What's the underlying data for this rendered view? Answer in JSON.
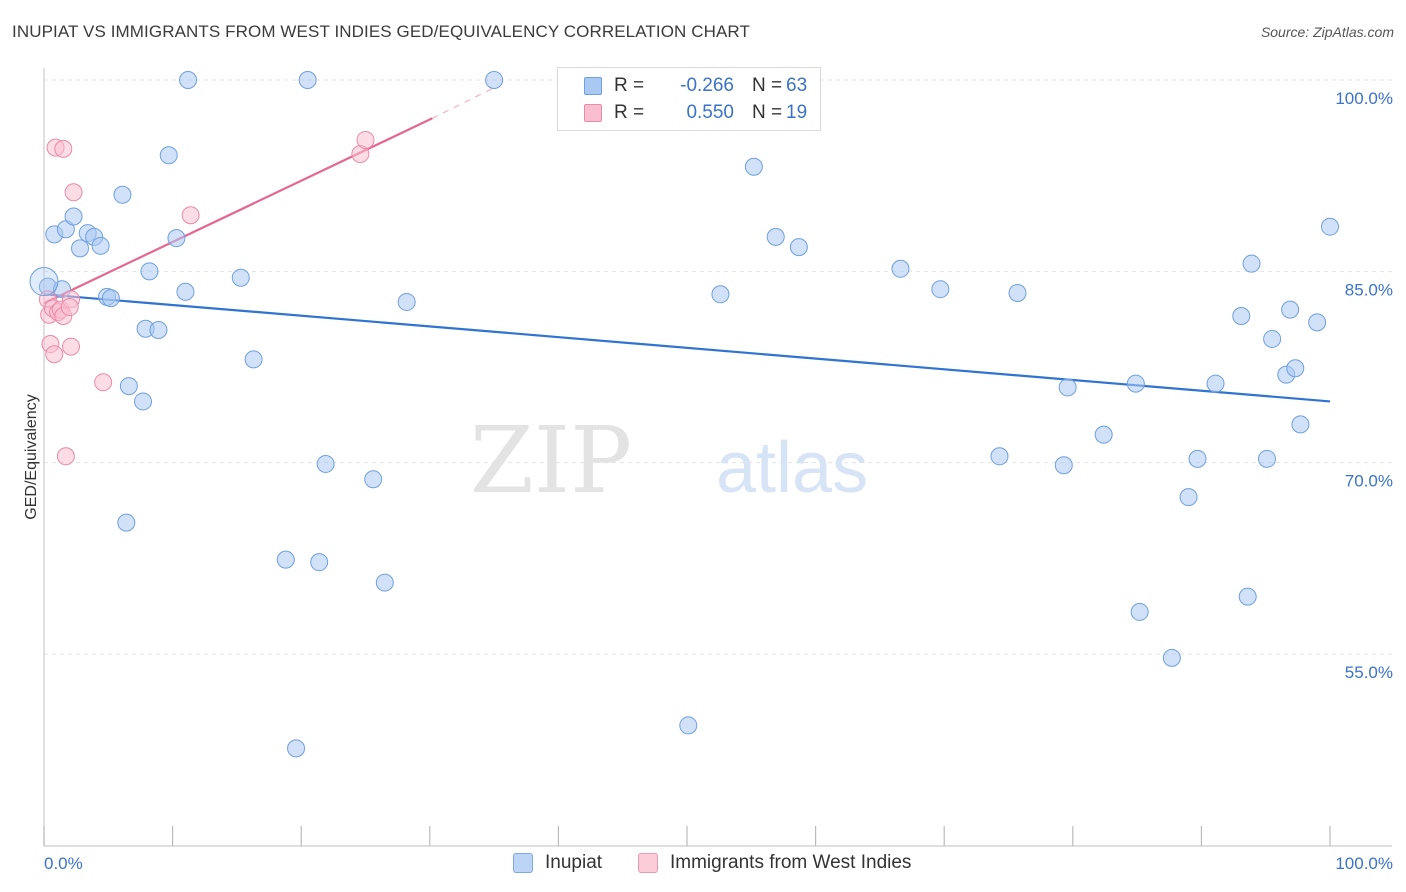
{
  "header": {
    "title": "INUPIAT VS IMMIGRANTS FROM WEST INDIES GED/EQUIVALENCY CORRELATION CHART",
    "source": "Source: ZipAtlas.com"
  },
  "legend_box": {
    "rows": [
      {
        "r_label": "R =",
        "r_value": "-0.266",
        "n_label": "N =",
        "n_value": "63",
        "color": "#a9c8f2",
        "border": "#6fa0e0"
      },
      {
        "r_label": "R =",
        "r_value": "0.550",
        "n_label": "N =",
        "n_value": "19",
        "color": "#f9bfd0",
        "border": "#ea8aa9"
      }
    ]
  },
  "bottom_legend": [
    {
      "label": "Inupiat",
      "color": "#bcd5f6",
      "border": "#7ea9e4"
    },
    {
      "label": "Immigrants from West Indies",
      "color": "#fbcdd9",
      "border": "#ee97b2"
    }
  ],
  "watermark": {
    "part1": "ZIP",
    "part2": "atlas"
  },
  "chart_data": {
    "type": "scatter",
    "title": "INUPIAT VS IMMIGRANTS FROM WEST INDIES GED/EQUIVALENCY CORRELATION CHART",
    "xlabel": "",
    "ylabel": "GED/Equivalency",
    "xlim": [
      0,
      100
    ],
    "ylim": [
      37,
      103
    ],
    "x_tick_labels": [
      "0.0%",
      "100.0%"
    ],
    "y_ticks": [
      55,
      70,
      85,
      100
    ],
    "y_tick_labels": [
      "55.0%",
      "70.0%",
      "85.0%",
      "100.0%"
    ],
    "grid": true,
    "legend_position": "top-center",
    "series": [
      {
        "name": "Inupiat",
        "color": "#a9c8f2",
        "stroke": "#6fa0e0",
        "trend_color": "#2f74d0",
        "trend": {
          "x": [
            0,
            100
          ],
          "y": [
            83.2,
            74.8
          ]
        },
        "points": [
          [
            0.3,
            83.8
          ],
          [
            0.8,
            87.9
          ],
          [
            1.4,
            83.6
          ],
          [
            1.7,
            88.3
          ],
          [
            2.3,
            89.3
          ],
          [
            2.8,
            86.8
          ],
          [
            3.4,
            88.0
          ],
          [
            3.9,
            87.7
          ],
          [
            4.4,
            87.0
          ],
          [
            4.9,
            83.0
          ],
          [
            5.2,
            82.9
          ],
          [
            6.1,
            91.0
          ],
          [
            6.4,
            65.3
          ],
          [
            6.6,
            76.0
          ],
          [
            7.7,
            74.8
          ],
          [
            7.9,
            80.5
          ],
          [
            8.2,
            85.0
          ],
          [
            8.9,
            80.4
          ],
          [
            9.7,
            94.1
          ],
          [
            10.3,
            87.6
          ],
          [
            11.0,
            83.4
          ],
          [
            11.2,
            100.0
          ],
          [
            15.3,
            84.5
          ],
          [
            16.3,
            78.1
          ],
          [
            18.8,
            62.4
          ],
          [
            19.6,
            47.6
          ],
          [
            20.5,
            100.0
          ],
          [
            21.4,
            62.2
          ],
          [
            21.9,
            69.9
          ],
          [
            25.6,
            68.7
          ],
          [
            26.5,
            60.6
          ],
          [
            28.2,
            82.6
          ],
          [
            35.0,
            100.0
          ],
          [
            47.1,
            100.0
          ],
          [
            50.1,
            49.4
          ],
          [
            52.6,
            83.2
          ],
          [
            55.2,
            93.2
          ],
          [
            56.9,
            87.7
          ],
          [
            58.7,
            86.9
          ],
          [
            66.6,
            85.2
          ],
          [
            69.7,
            83.6
          ],
          [
            74.3,
            70.5
          ],
          [
            75.7,
            83.3
          ],
          [
            79.3,
            69.8
          ],
          [
            79.6,
            75.9
          ],
          [
            82.4,
            72.2
          ],
          [
            84.9,
            76.2
          ],
          [
            85.2,
            58.3
          ],
          [
            87.7,
            54.7
          ],
          [
            89.0,
            67.3
          ],
          [
            89.7,
            70.3
          ],
          [
            91.1,
            76.2
          ],
          [
            93.1,
            81.5
          ],
          [
            93.6,
            59.5
          ],
          [
            93.9,
            85.6
          ],
          [
            95.1,
            70.3
          ],
          [
            95.5,
            79.7
          ],
          [
            96.6,
            76.9
          ],
          [
            96.9,
            82.0
          ],
          [
            97.3,
            77.4
          ],
          [
            97.7,
            73.0
          ],
          [
            99.0,
            81.0
          ],
          [
            100.0,
            88.5
          ]
        ]
      },
      {
        "name": "Immigrants from West Indies",
        "color": "#f9bfd0",
        "stroke": "#ea8aa9",
        "trend_color": "#e5668f",
        "trend": {
          "x": [
            0,
            30.2
          ],
          "y": [
            82.5,
            97.0
          ]
        },
        "trend_dashed": {
          "x": [
            30.2,
            35.0
          ],
          "y": [
            97.0,
            99.4
          ]
        },
        "points": [
          [
            0.3,
            82.8
          ],
          [
            0.4,
            81.6
          ],
          [
            0.5,
            79.3
          ],
          [
            0.7,
            82.1
          ],
          [
            0.8,
            78.5
          ],
          [
            0.9,
            94.7
          ],
          [
            1.1,
            81.8
          ],
          [
            1.3,
            82.0
          ],
          [
            1.5,
            81.5
          ],
          [
            1.5,
            94.6
          ],
          [
            1.7,
            70.5
          ],
          [
            2.1,
            79.1
          ],
          [
            2.1,
            82.8
          ],
          [
            2.3,
            91.2
          ],
          [
            4.6,
            76.3
          ],
          [
            11.4,
            89.4
          ],
          [
            24.6,
            94.2
          ],
          [
            25.0,
            95.3
          ],
          [
            2.0,
            82.2
          ]
        ]
      }
    ]
  }
}
